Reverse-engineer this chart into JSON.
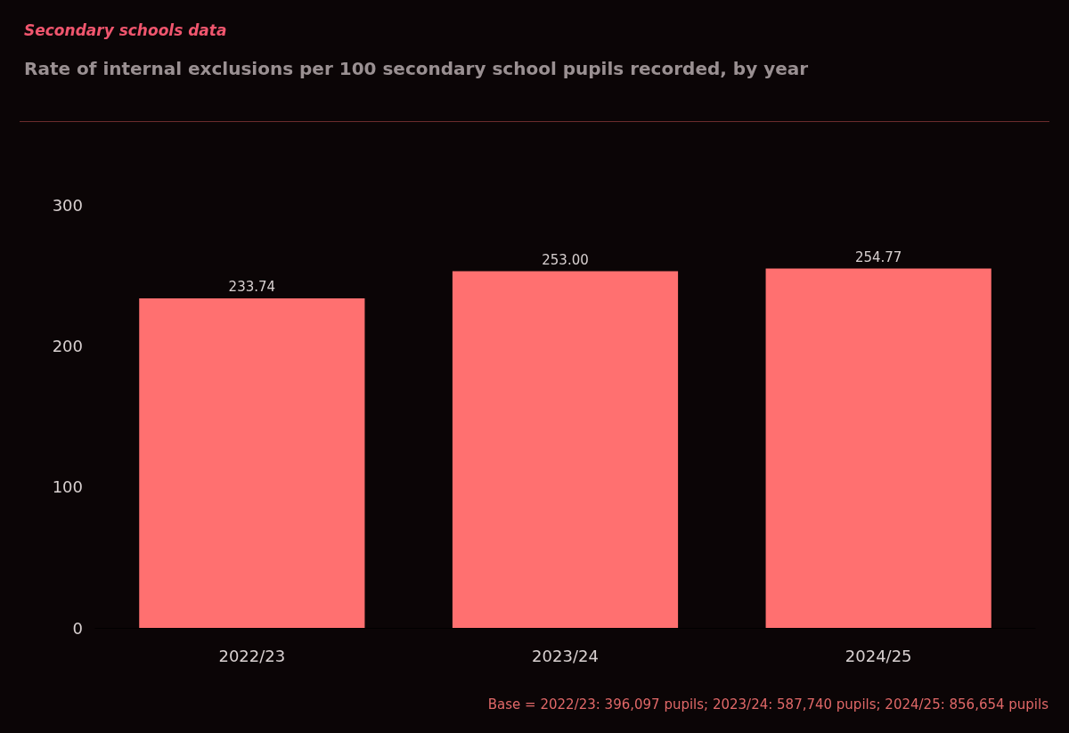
{
  "chart_data": {
    "type": "bar",
    "subtitle": "Secondary schools data",
    "title": "Rate of internal exclusions per 100 secondary school pupils recorded, by year",
    "categories": [
      "2022/23",
      "2023/24",
      "2024/25"
    ],
    "values": [
      233.74,
      253.0,
      254.77
    ],
    "value_labels": [
      "233.74",
      "253.00",
      "254.77"
    ],
    "color": "#ff7070",
    "ylim": [
      0,
      300
    ],
    "yticks": [
      0,
      100,
      200,
      300
    ],
    "grid": false,
    "annotations": [
      "Base = 2022/23: 396,097 pupils; 2023/24: 587,740 pupils; 2024/25: 856,654 pupils"
    ]
  }
}
